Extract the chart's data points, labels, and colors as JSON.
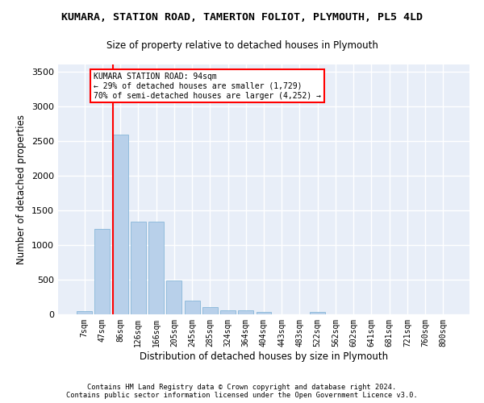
{
  "title": "KUMARA, STATION ROAD, TAMERTON FOLIOT, PLYMOUTH, PL5 4LD",
  "subtitle": "Size of property relative to detached houses in Plymouth",
  "xlabel": "Distribution of detached houses by size in Plymouth",
  "ylabel": "Number of detached properties",
  "bar_color": "#b8d0ea",
  "bar_edgecolor": "#7aafd4",
  "background_color": "#e8eef8",
  "grid_color": "#ffffff",
  "categories": [
    "7sqm",
    "47sqm",
    "86sqm",
    "126sqm",
    "166sqm",
    "205sqm",
    "245sqm",
    "285sqm",
    "324sqm",
    "364sqm",
    "404sqm",
    "443sqm",
    "483sqm",
    "522sqm",
    "562sqm",
    "602sqm",
    "641sqm",
    "681sqm",
    "721sqm",
    "760sqm",
    "800sqm"
  ],
  "values": [
    50,
    1230,
    2590,
    1340,
    1340,
    490,
    195,
    105,
    58,
    55,
    32,
    5,
    5,
    32,
    3,
    2,
    2,
    1,
    1,
    1,
    1
  ],
  "ylim": [
    0,
    3600
  ],
  "yticks": [
    0,
    500,
    1000,
    1500,
    2000,
    2500,
    3000,
    3500
  ],
  "red_line_bin_index": 2,
  "annotation_title": "KUMARA STATION ROAD: 94sqm",
  "annotation_line1": "← 29% of detached houses are smaller (1,729)",
  "annotation_line2": "70% of semi-detached houses are larger (4,252) →",
  "footer1": "Contains HM Land Registry data © Crown copyright and database right 2024.",
  "footer2": "Contains public sector information licensed under the Open Government Licence v3.0."
}
